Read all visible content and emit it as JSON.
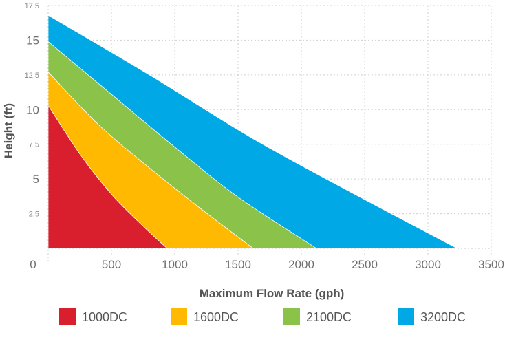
{
  "chart_data": {
    "type": "area",
    "xlabel": "Maximum Flow Rate (gph)",
    "ylabel": "Height (ft)",
    "xlim": [
      0,
      3500
    ],
    "ylim": [
      0,
      17.5
    ],
    "x_ticks": [
      0,
      500,
      1000,
      1500,
      2000,
      2500,
      3000,
      3500
    ],
    "y_ticks": [
      {
        "value": 2.5,
        "label": "2.5",
        "major": false
      },
      {
        "value": 5,
        "label": "5",
        "major": true
      },
      {
        "value": 7.5,
        "label": "7.5",
        "major": false
      },
      {
        "value": 10,
        "label": "10",
        "major": true
      },
      {
        "value": 12.5,
        "label": "12.5",
        "major": false
      },
      {
        "value": 15,
        "label": "15",
        "major": true
      },
      {
        "value": 17.5,
        "label": "17.5",
        "major": false
      }
    ],
    "grid": true,
    "legend_position": "bottom",
    "series": [
      {
        "name": "3200DC",
        "color": "#00a9e6",
        "x": [
          0,
          800,
          1600,
          2400,
          3230
        ],
        "y": [
          16.8,
          12.5,
          8.0,
          4.0,
          0
        ]
      },
      {
        "name": "2100DC",
        "color": "#8bc34a",
        "x": [
          0,
          500,
          1000,
          1500,
          2120
        ],
        "y": [
          14.9,
          11.1,
          7.3,
          3.7,
          0
        ]
      },
      {
        "name": "1600DC",
        "color": "#ffb900",
        "x": [
          0,
          400,
          800,
          1200,
          1620
        ],
        "y": [
          12.7,
          8.9,
          5.8,
          2.9,
          0
        ]
      },
      {
        "name": "1000DC",
        "color": "#d91f2e",
        "x": [
          0,
          250,
          500,
          750,
          940
        ],
        "y": [
          10.3,
          6.8,
          3.9,
          1.6,
          0
        ]
      }
    ],
    "legend": [
      {
        "name": "1000DC",
        "color": "#d91f2e"
      },
      {
        "name": "1600DC",
        "color": "#ffb900"
      },
      {
        "name": "2100DC",
        "color": "#8bc34a"
      },
      {
        "name": "3200DC",
        "color": "#00a9e6"
      }
    ]
  }
}
